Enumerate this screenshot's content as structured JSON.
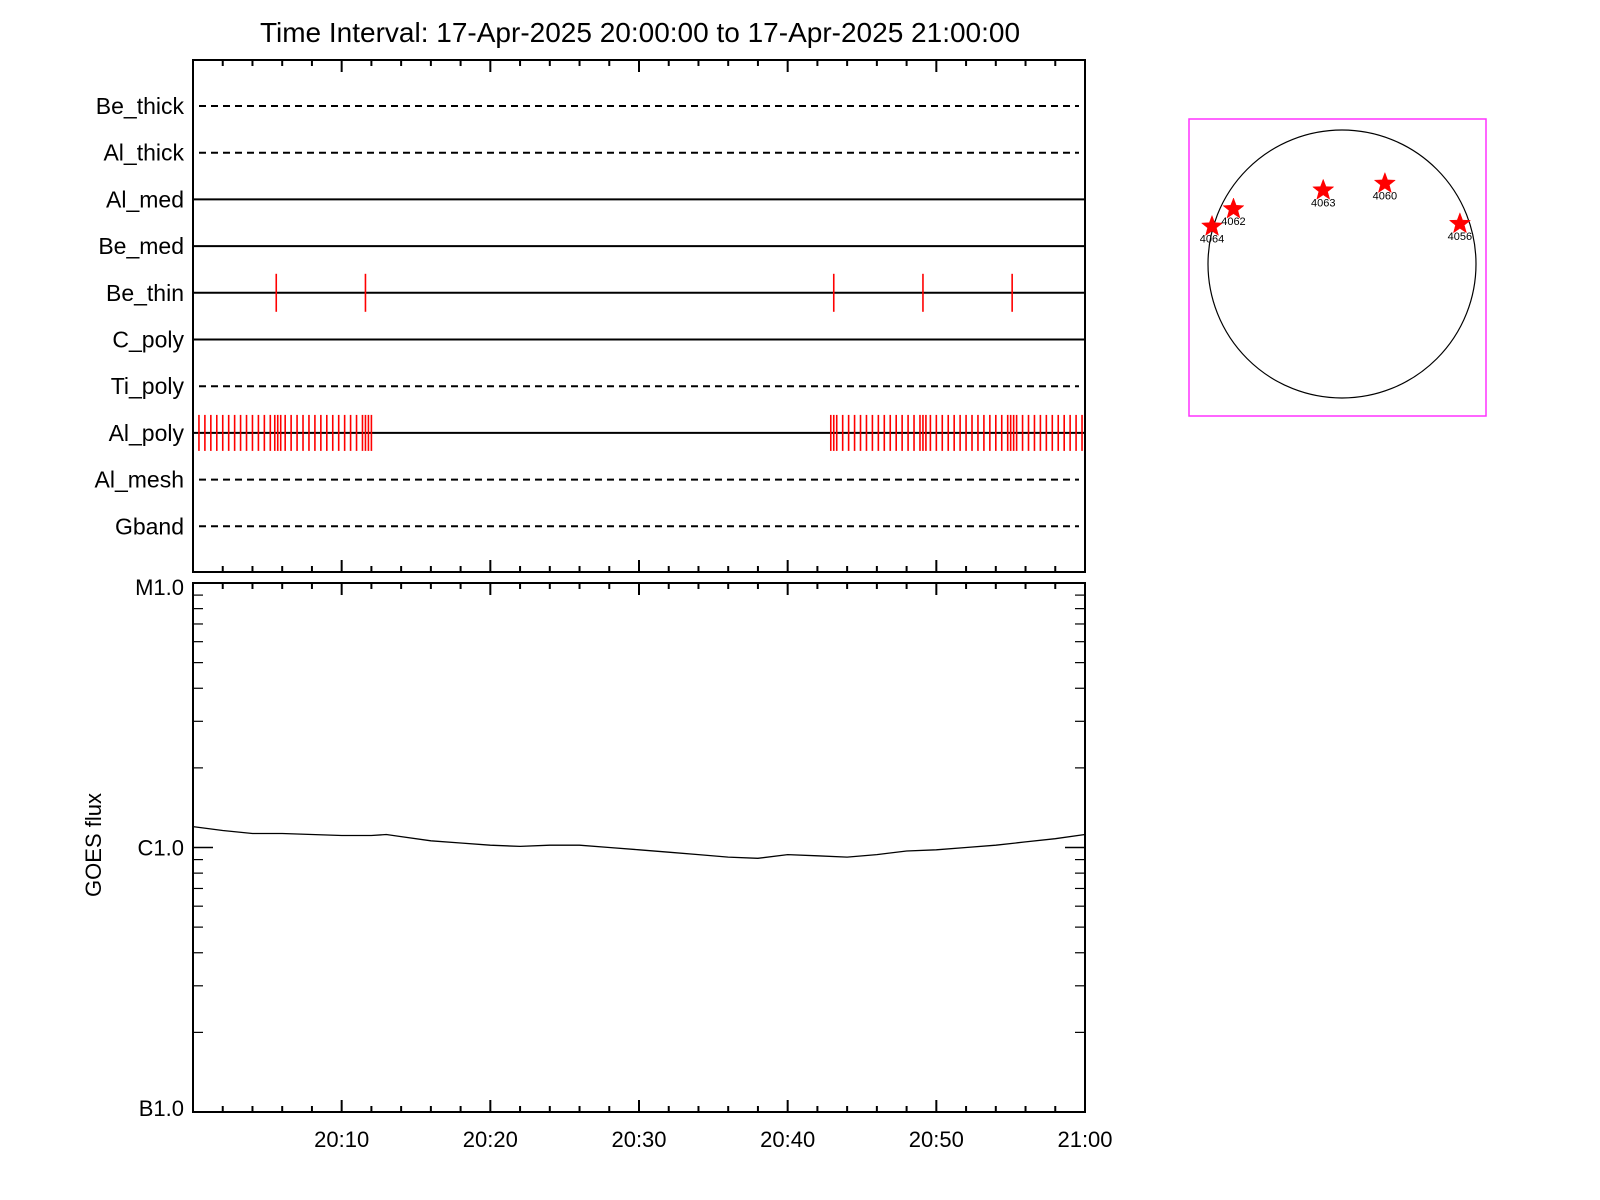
{
  "chart_data": [
    {
      "type": "line",
      "panel": "filter-timeline",
      "title": "Time Interval: 17-Apr-2025 20:00:00 to 17-Apr-2025 21:00:00",
      "filters": [
        {
          "name": "Be_thick",
          "style": "dashed"
        },
        {
          "name": "Al_thick",
          "style": "dashed"
        },
        {
          "name": "Al_med",
          "style": "solid"
        },
        {
          "name": "Be_med",
          "style": "solid"
        },
        {
          "name": "Be_thin",
          "style": "solid",
          "exposures_min": [
            5.6,
            11.6,
            43.1,
            49.1,
            55.1
          ]
        },
        {
          "name": "C_poly",
          "style": "solid"
        },
        {
          "name": "Ti_poly",
          "style": "dashed"
        },
        {
          "name": "Al_poly",
          "style": "solid",
          "exposures_min": [
            0.4,
            0.8,
            1.2,
            1.6,
            2.0,
            2.4,
            2.8,
            3.2,
            3.6,
            4.0,
            4.4,
            4.8,
            5.2,
            5.5,
            5.7,
            5.9,
            6.2,
            6.6,
            7.0,
            7.4,
            7.8,
            8.2,
            8.6,
            9.0,
            9.4,
            9.8,
            10.2,
            10.6,
            11.0,
            11.4,
            11.6,
            11.8,
            12.0,
            42.9,
            43.1,
            43.3,
            43.7,
            44.1,
            44.5,
            44.9,
            45.3,
            45.7,
            46.1,
            46.5,
            46.9,
            47.3,
            47.7,
            48.1,
            48.5,
            48.9,
            49.1,
            49.3,
            49.6,
            50.0,
            50.4,
            50.8,
            51.2,
            51.6,
            52.0,
            52.4,
            52.8,
            53.2,
            53.6,
            54.0,
            54.4,
            54.8,
            55.0,
            55.2,
            55.4,
            55.8,
            56.2,
            56.6,
            57.0,
            57.4,
            57.8,
            58.2,
            58.6,
            59.0,
            59.4,
            59.8
          ]
        },
        {
          "name": "Al_mesh",
          "style": "dashed"
        },
        {
          "name": "Gband",
          "style": "dashed"
        }
      ],
      "x_range_min": [
        0,
        60
      ],
      "exposure_color": "#ff0000"
    },
    {
      "type": "line",
      "panel": "goes-flux",
      "ylabel": "GOES flux",
      "yscale": "log",
      "ylim": [
        1e-07,
        1e-05
      ],
      "y_ticks": [
        {
          "label": "B1.0",
          "value": 1e-07
        },
        {
          "label": "C1.0",
          "value": 1e-06
        },
        {
          "label": "M1.0",
          "value": 1e-05
        }
      ],
      "x_ticks": [
        "20:10",
        "20:20",
        "20:30",
        "20:40",
        "20:50",
        "21:00"
      ],
      "x_tick_values_min": [
        10,
        20,
        30,
        40,
        50,
        60
      ],
      "x_range_min": [
        0,
        60
      ],
      "series": [
        {
          "x": [
            0,
            2,
            4,
            6,
            8,
            10,
            12,
            13,
            14,
            16,
            18,
            20,
            22,
            24,
            26,
            28,
            30,
            32,
            34,
            36,
            38,
            40,
            42,
            44,
            46,
            48,
            50,
            52,
            54,
            56,
            58,
            60
          ],
          "values": [
            1.2e-06,
            1.16e-06,
            1.13e-06,
            1.13e-06,
            1.12e-06,
            1.11e-06,
            1.11e-06,
            1.12e-06,
            1.1e-06,
            1.06e-06,
            1.04e-06,
            1.02e-06,
            1.01e-06,
            1.02e-06,
            1.02e-06,
            1e-06,
            9.8e-07,
            9.6e-07,
            9.4e-07,
            9.2e-07,
            9.1e-07,
            9.4e-07,
            9.3e-07,
            9.2e-07,
            9.4e-07,
            9.7e-07,
            9.8e-07,
            1e-06,
            1.02e-06,
            1.05e-06,
            1.08e-06,
            1.12e-06
          ]
        }
      ]
    },
    {
      "type": "scatter",
      "panel": "solar-disk",
      "frame_color": "#ff33ff",
      "marker_color": "#ff0000",
      "regions": [
        {
          "label": "4064",
          "x": -0.97,
          "y": 0.28
        },
        {
          "label": "4062",
          "x": -0.81,
          "y": 0.41
        },
        {
          "label": "4063",
          "x": -0.14,
          "y": 0.55
        },
        {
          "label": "4060",
          "x": 0.32,
          "y": 0.6
        },
        {
          "label": "4056",
          "x": 0.88,
          "y": 0.3
        }
      ]
    }
  ]
}
